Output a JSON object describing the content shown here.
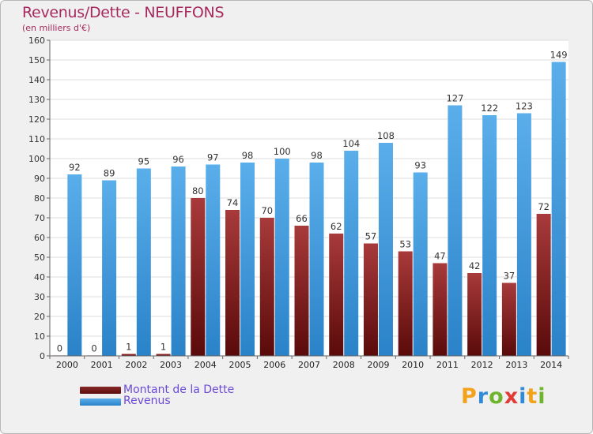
{
  "chart_data": {
    "type": "bar",
    "title": "Revenus/Dette - NEUFFONS",
    "subtitle": "(en milliers d'€)",
    "xlabel": "",
    "ylabel": "",
    "ylim": [
      0,
      160
    ],
    "yticks": [
      "0",
      "10",
      "20",
      "30",
      "40",
      "50",
      "60",
      "70",
      "80",
      "90",
      "100",
      "110",
      "120",
      "130",
      "140",
      "150",
      "160"
    ],
    "categories": [
      "2000",
      "2001",
      "2002",
      "2003",
      "2004",
      "2005",
      "2006",
      "2007",
      "2008",
      "2009",
      "2010",
      "2011",
      "2012",
      "2013",
      "2014"
    ],
    "series": [
      {
        "name": "Montant de la Dette",
        "color": "#7a1a1a",
        "values": [
          0,
          0,
          1,
          1,
          80,
          74,
          70,
          66,
          62,
          57,
          53,
          47,
          42,
          37,
          72
        ]
      },
      {
        "name": "Revenus",
        "color": "#4a9fe0",
        "values": [
          92,
          89,
          95,
          96,
          97,
          98,
          100,
          98,
          104,
          108,
          93,
          127,
          122,
          123,
          149
        ]
      }
    ],
    "grid": true,
    "legend": "bottom-left"
  },
  "logo": {
    "letters": [
      "P",
      "r",
      "o",
      "x",
      "i",
      "t",
      "i"
    ],
    "colors": [
      "#f2a21b",
      "#2f8bd8",
      "#6fb52c",
      "#e23a34",
      "#2f8bd8",
      "#f2a21b",
      "#6fb52c"
    ]
  }
}
